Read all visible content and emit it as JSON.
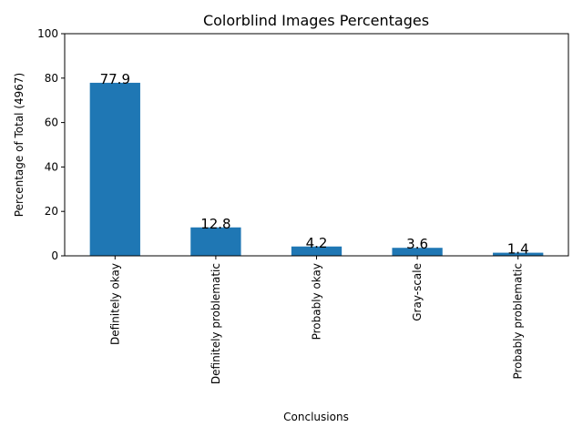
{
  "chart_data": {
    "type": "bar",
    "title": "Colorblind Images Percentages",
    "xlabel": "Conclusions",
    "ylabel": "Percentage of Total (4967)",
    "categories": [
      "Definitely okay",
      "Definitely problematic",
      "Probably okay",
      "Gray-scale",
      "Probably problematic"
    ],
    "values": [
      77.9,
      12.8,
      4.2,
      3.6,
      1.4
    ],
    "data_labels": [
      "77.9",
      "12.8",
      "4.2",
      "3.6",
      "1.4"
    ],
    "ylim": [
      0,
      100
    ],
    "yticks": [
      0,
      20,
      40,
      60,
      80,
      100
    ],
    "ytick_labels": [
      "0",
      "20",
      "40",
      "60",
      "80",
      "100"
    ],
    "grid": false,
    "legend": "none",
    "bar_color": "#1f77b4"
  }
}
